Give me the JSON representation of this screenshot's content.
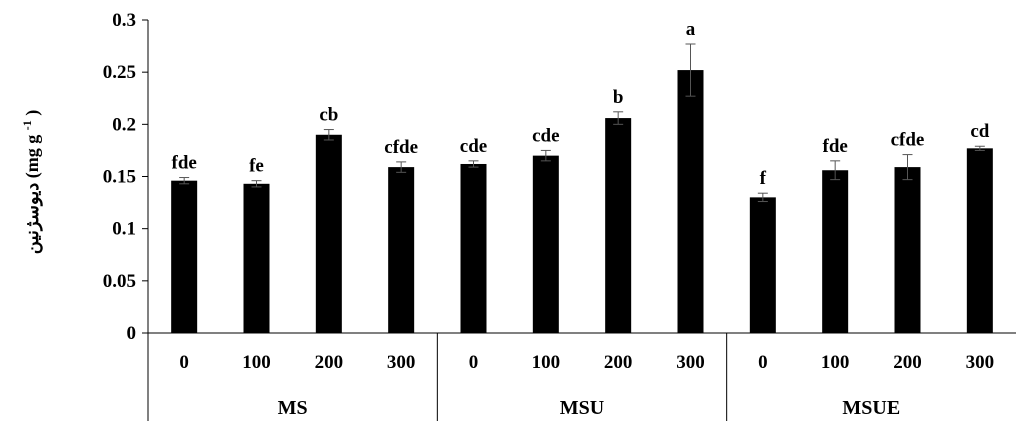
{
  "chart_data": {
    "type": "bar",
    "ylabel": "دیوسژنین (mg g⁻¹)",
    "ylabel_text": "دیوسژنین",
    "ylabel_unit": "(mg g",
    "ylabel_sup": "-1",
    "ylabel_close": ")",
    "ylim": [
      0,
      0.3
    ],
    "yticks": [
      0,
      0.05,
      0.1,
      0.15,
      0.2,
      0.25,
      0.3
    ],
    "ytick_labels": [
      "0",
      "0.05",
      "0.1",
      "0.15",
      "0.2",
      "0.25",
      "0.3"
    ],
    "groups": [
      "MS",
      "MSU",
      "MSUE"
    ],
    "categories": [
      "0",
      "100",
      "200",
      "300",
      "0",
      "100",
      "200",
      "300",
      "0",
      "100",
      "200",
      "300"
    ],
    "values": [
      0.146,
      0.143,
      0.19,
      0.159,
      0.162,
      0.17,
      0.206,
      0.252,
      0.13,
      0.156,
      0.159,
      0.177
    ],
    "errors": [
      0.003,
      0.003,
      0.005,
      0.005,
      0.003,
      0.005,
      0.006,
      0.025,
      0.004,
      0.009,
      0.012,
      0.002
    ],
    "letters": [
      "fde",
      "fe",
      "cb",
      "cfde",
      "cde",
      "cde",
      "b",
      "a",
      "f",
      "fde",
      "cfde",
      "cd"
    ],
    "grid": false,
    "legend": "none",
    "bar_color": "#000000"
  }
}
